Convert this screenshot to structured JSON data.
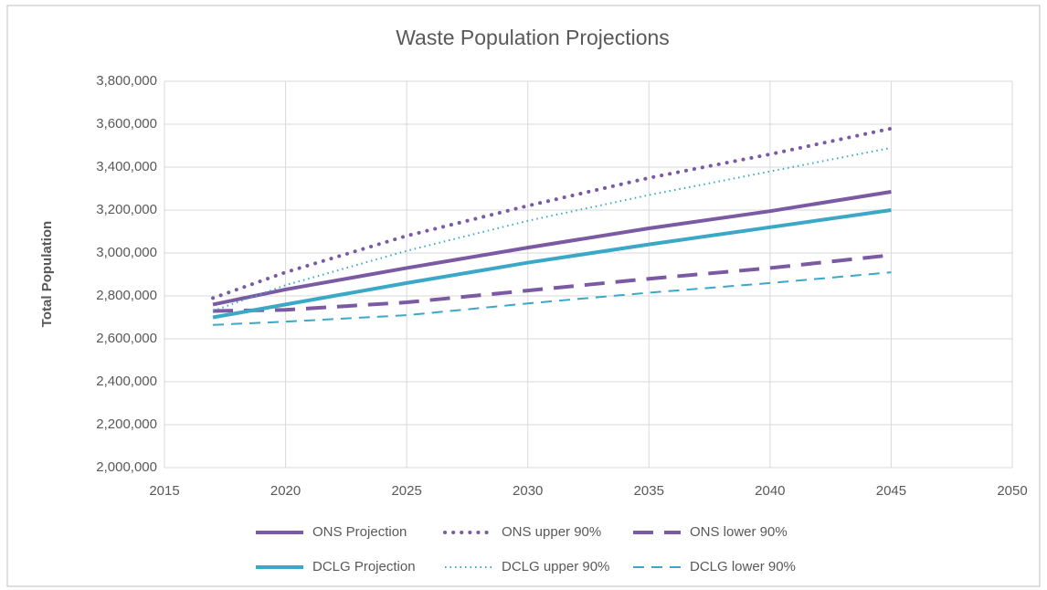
{
  "chart_data": {
    "type": "line",
    "title": "Waste Population Projections",
    "y_label": "Total Population",
    "grid": true,
    "legend": "bottom",
    "xlim": [
      2015,
      2050
    ],
    "xticks": [
      2015,
      2020,
      2025,
      2030,
      2035,
      2040,
      2045,
      2050
    ],
    "ylim": [
      2000000,
      3800000
    ],
    "yticks": [
      {
        "value": 2000000,
        "label": "2,000,000"
      },
      {
        "value": 2200000,
        "label": "2,200,000"
      },
      {
        "value": 2400000,
        "label": "2,400,000"
      },
      {
        "value": 2600000,
        "label": "2,600,000"
      },
      {
        "value": 2800000,
        "label": "2,800,000"
      },
      {
        "value": 3000000,
        "label": "3,000,000"
      },
      {
        "value": 3200000,
        "label": "3,200,000"
      },
      {
        "value": 3400000,
        "label": "3,400,000"
      },
      {
        "value": 3600000,
        "label": "3,600,000"
      },
      {
        "value": 3800000,
        "label": "3,800,000"
      }
    ],
    "x": [
      2017,
      2020,
      2025,
      2030,
      2035,
      2040,
      2045
    ],
    "series": [
      {
        "name": "ONS Projection",
        "color": "#7b59a3",
        "dash": "solid",
        "width": 4,
        "values": [
          2760000,
          2830000,
          2930000,
          3025000,
          3115000,
          3195000,
          3285000
        ]
      },
      {
        "name": "ONS upper 90%",
        "color": "#7b59a3",
        "dash": "dotted",
        "width": 4,
        "values": [
          2790000,
          2910000,
          3080000,
          3220000,
          3350000,
          3460000,
          3580000
        ]
      },
      {
        "name": "ONS lower 90%",
        "color": "#7b59a3",
        "dash": "dashed",
        "width": 4,
        "values": [
          2730000,
          2735000,
          2770000,
          2825000,
          2880000,
          2930000,
          2990000
        ]
      },
      {
        "name": "DCLG Projection",
        "color": "#3aa8c6",
        "dash": "solid",
        "width": 4,
        "values": [
          2700000,
          2760000,
          2860000,
          2955000,
          3040000,
          3120000,
          3200000
        ]
      },
      {
        "name": "DCLG upper 90%",
        "color": "#3aa8c6",
        "dash": "dotted",
        "width": 2,
        "values": [
          2730000,
          2850000,
          3010000,
          3150000,
          3270000,
          3380000,
          3490000
        ]
      },
      {
        "name": "DCLG lower 90%",
        "color": "#3aa8c6",
        "dash": "dashed",
        "width": 2,
        "values": [
          2665000,
          2680000,
          2710000,
          2765000,
          2815000,
          2860000,
          2910000
        ]
      }
    ]
  }
}
